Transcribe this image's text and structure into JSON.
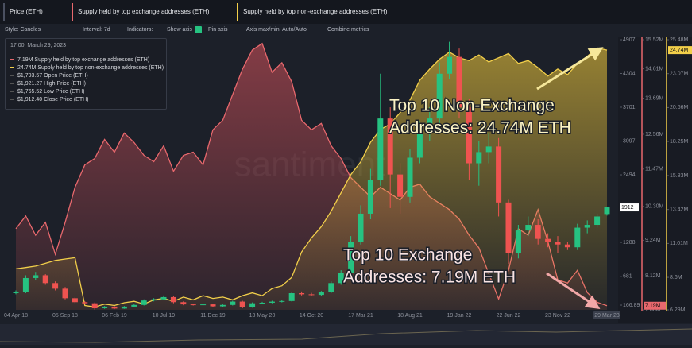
{
  "tabs": [
    "Price (ETH)",
    "Supply held by top exchange addresses (ETH)",
    "Supply held by top non-exchange addresses (ETH)"
  ],
  "toolbar": {
    "style": "Style: Candles",
    "interval": "Interval: 7d",
    "indicators": "Indicators:",
    "show_axis": "Show axis",
    "pin_axis": "Pin axis",
    "axis_maxmin": "Axis max/min: Auto/Auto",
    "combine": "Combine metrics"
  },
  "tooltip": {
    "time": "17:00, March 29, 2023",
    "values": [
      "7.19M",
      "24.74M",
      "$1,793.57",
      "$1,921.27",
      "$1,765.52",
      "$1,912.40"
    ],
    "labels": [
      "Open Price (ETH)",
      "High Price (ETH)",
      "Low Price (ETH)",
      "Close Price (ETH)"
    ]
  },
  "chart_data": {
    "type": "combo",
    "watermark": "santiment",
    "categories": [
      "04 Apr 18",
      null,
      null,
      null,
      null,
      "05 Sep 18",
      null,
      null,
      null,
      null,
      "06 Feb 19",
      null,
      null,
      null,
      null,
      "10 Jul 19",
      null,
      null,
      null,
      null,
      "11 Dec 19",
      null,
      null,
      null,
      null,
      "13 May 20",
      null,
      null,
      null,
      null,
      "14 Oct 20",
      null,
      null,
      null,
      null,
      "17 Mar 21",
      null,
      null,
      null,
      null,
      "18 Aug 21",
      null,
      null,
      null,
      null,
      "19 Jan 22",
      null,
      null,
      null,
      null,
      "22 Jun 22",
      null,
      null,
      null,
      null,
      "23 Nov 22",
      null,
      null,
      null,
      null,
      "29 Mar 23"
    ],
    "series": [
      {
        "name": "Price (ETH)",
        "type": "candlestick",
        "axis": "y",
        "color_up": "#26c281",
        "color_down": "#ef5350",
        "open": [
          380,
          400,
          650,
          700,
          560,
          460,
          290,
          220,
          200,
          110,
          140,
          105,
          140,
          170,
          250,
          270,
          310,
          220,
          180,
          175,
          180,
          145,
          170,
          230,
          130,
          200,
          210,
          230,
          240,
          380,
          360,
          350,
          400,
          560,
          740,
          1300,
          1800,
          2400,
          3500,
          2500,
          2100,
          2800,
          3300,
          3500,
          4300,
          4600,
          3700,
          2700,
          2900,
          3000,
          2000,
          1100,
          1500,
          1600,
          1350,
          1300,
          1250,
          1200,
          1550,
          1600,
          1793.57
        ],
        "high": [
          430,
          700,
          760,
          720,
          590,
          490,
          310,
          235,
          215,
          150,
          150,
          150,
          180,
          270,
          290,
          340,
          330,
          235,
          195,
          195,
          190,
          180,
          245,
          245,
          215,
          225,
          245,
          255,
          400,
          410,
          385,
          420,
          590,
          790,
          1400,
          1950,
          2600,
          4300,
          3700,
          2700,
          2950,
          3450,
          3700,
          4500,
          4870,
          4750,
          3850,
          3100,
          3250,
          3150,
          2050,
          1600,
          1750,
          1700,
          1450,
          1400,
          1300,
          1620,
          1680,
          1800,
          1921.27
        ],
        "low": [
          360,
          380,
          610,
          530,
          430,
          270,
          200,
          180,
          85,
          100,
          95,
          100,
          130,
          160,
          235,
          255,
          200,
          165,
          160,
          165,
          130,
          135,
          160,
          110,
          120,
          185,
          200,
          215,
          230,
          340,
          330,
          335,
          380,
          530,
          700,
          1250,
          1700,
          2300,
          1900,
          1800,
          2000,
          2700,
          3100,
          3400,
          4200,
          3500,
          2400,
          2300,
          2700,
          1750,
          900,
          1000,
          1400,
          1250,
          1200,
          1100,
          1150,
          1150,
          1450,
          1550,
          1765.52
        ],
        "close": [
          400,
          650,
          700,
          560,
          460,
          290,
          220,
          200,
          110,
          140,
          105,
          140,
          170,
          250,
          270,
          310,
          220,
          180,
          175,
          180,
          145,
          170,
          230,
          130,
          200,
          210,
          230,
          240,
          380,
          360,
          350,
          400,
          560,
          740,
          1300,
          1800,
          2400,
          3500,
          2500,
          2100,
          2800,
          3300,
          3500,
          4300,
          4600,
          3700,
          2700,
          2900,
          3000,
          2000,
          1100,
          1500,
          1600,
          1350,
          1300,
          1250,
          1200,
          1550,
          1600,
          1750,
          1912.4
        ]
      },
      {
        "name": "Supply held by top exchange addresses (ETH)",
        "type": "area",
        "axis": "y2",
        "color": "#e8686d",
        "values": [
          9.6,
          10.0,
          9.4,
          9.8,
          8.8,
          9.8,
          10.9,
          11.6,
          11.8,
          12.4,
          12.0,
          12.6,
          12.3,
          11.9,
          11.7,
          12.2,
          11.4,
          11.9,
          12.0,
          11.6,
          12.7,
          13.0,
          13.8,
          14.6,
          15.2,
          15.4,
          14.5,
          14.8,
          14.2,
          13.0,
          12.7,
          12.9,
          12.2,
          11.8,
          11.2,
          10.9,
          10.6,
          10.9,
          10.7,
          10.5,
          10.9,
          11.0,
          10.6,
          10.4,
          10.2,
          9.9,
          9.4,
          9.0,
          8.2,
          7.4,
          8.3,
          9.6,
          9.4,
          10.2,
          9.2,
          8.0,
          7.9,
          8.3,
          7.6,
          7.3,
          7.19
        ]
      },
      {
        "name": "Supply held by top non-exchange addresses (ETH)",
        "type": "area",
        "axis": "y3",
        "color": "#f2cf4a",
        "values": [
          9.2,
          9.3,
          9.4,
          9.6,
          9.8,
          9.9,
          10.0,
          6.6,
          6.5,
          6.7,
          6.6,
          6.8,
          6.9,
          6.7,
          7.0,
          7.1,
          6.9,
          7.2,
          7.0,
          7.3,
          7.1,
          7.2,
          7.0,
          7.3,
          7.5,
          7.3,
          7.8,
          8.0,
          8.6,
          10.4,
          11.4,
          12.2,
          13.3,
          14.6,
          15.9,
          16.8,
          18.2,
          19.1,
          19.5,
          20.3,
          21.2,
          22.6,
          23.4,
          24.1,
          24.6,
          24.2,
          24.0,
          24.4,
          23.9,
          24.2,
          24.5,
          23.8,
          24.0,
          23.5,
          22.9,
          23.4,
          23.0,
          23.8,
          24.3,
          24.9,
          24.74
        ]
      }
    ],
    "ylim": [
      82,
      4907
    ],
    "yticks": [
      166.89,
      681,
      1288,
      2494,
      3097,
      3701,
      4304,
      4907
    ],
    "y2lim": [
      7.06,
      15.52
    ],
    "y2ticks": [
      {
        "value": 7.06,
        "label": "7.06M"
      },
      {
        "value": 8.12,
        "label": "8.12M"
      },
      {
        "value": 9.24,
        "label": "9.24M"
      },
      {
        "value": 10.3,
        "label": "10.30M"
      },
      {
        "value": 11.47,
        "label": "11.47M"
      },
      {
        "value": 12.56,
        "label": "12.56M"
      },
      {
        "value": 13.69,
        "label": "13.69M"
      },
      {
        "value": 14.61,
        "label": "14.61M"
      },
      {
        "value": 15.52,
        "label": "15.52M"
      }
    ],
    "y3lim": [
      6.29,
      25.48
    ],
    "y3ticks": [
      {
        "value": 6.29,
        "label": "6.29M"
      },
      {
        "value": 8.6,
        "label": "8.6M"
      },
      {
        "value": 11.01,
        "label": "11.01M"
      },
      {
        "value": 13.42,
        "label": "13.42M"
      },
      {
        "value": 15.83,
        "label": "15.83M"
      },
      {
        "value": 18.25,
        "label": "18.25M"
      },
      {
        "value": 20.66,
        "label": "20.66M"
      },
      {
        "value": 23.07,
        "label": "23.07M"
      },
      {
        "value": 25.48,
        "label": "25.48M"
      }
    ],
    "last_values": [
      {
        "value": 1912,
        "label": "1912"
      },
      {
        "value": 7.19,
        "label": "7.19M"
      },
      {
        "value": 24.74,
        "label": "24.74M"
      }
    ],
    "annotations": [
      {
        "lines": [
          "Top 10 Non-Exchange",
          "Addresses: 24.74M ETH"
        ]
      },
      {
        "lines": [
          "Top 10 Exchange",
          "Addresses: 7.19M ETH"
        ]
      }
    ]
  }
}
